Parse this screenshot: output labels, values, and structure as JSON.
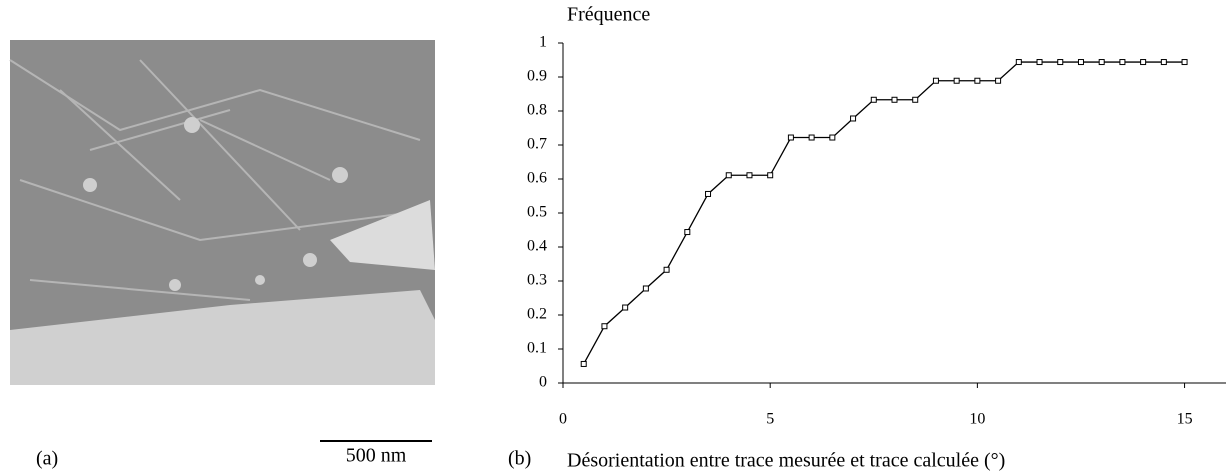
{
  "chart_data": {
    "type": "line",
    "y_label": "Fréquence",
    "x_label": "Désorientation entre trace mesurée et trace calculée (°)",
    "panel_a_label": "(a)",
    "panel_b_label": "(b)",
    "scale_bar": "500 nm",
    "x": [
      0.5,
      1,
      1.5,
      2,
      2.5,
      3,
      3.5,
      4,
      4.5,
      5,
      5.5,
      6,
      6.5,
      7,
      7.5,
      8,
      8.5,
      9,
      9.5,
      10,
      10.5,
      11,
      11.5,
      12,
      12.5,
      13,
      13.5,
      14,
      14.5,
      15
    ],
    "series": [
      {
        "color": "#000000",
        "values": [
          0.056,
          0.167,
          0.222,
          0.278,
          0.333,
          0.444,
          0.556,
          0.611,
          0.611,
          0.611,
          0.722,
          0.722,
          0.722,
          0.778,
          0.833,
          0.833,
          0.833,
          0.889,
          0.889,
          0.889,
          0.889,
          0.944,
          0.944,
          0.944,
          0.944,
          0.944,
          0.944,
          0.944,
          0.944,
          0.944
        ]
      }
    ],
    "xlim": [
      0,
      16
    ],
    "xticks": [
      0,
      5,
      10,
      15
    ],
    "ylim": [
      0,
      1
    ],
    "yticks": [
      0,
      0.1,
      0.2,
      0.3,
      0.4,
      0.5,
      0.6,
      0.7,
      0.8,
      0.9,
      1
    ]
  }
}
